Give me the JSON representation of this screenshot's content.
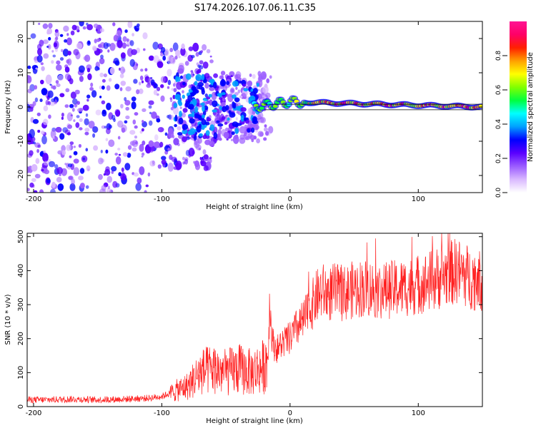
{
  "title": "S174.2026.107.06.11.C35",
  "chart_data": [
    {
      "type": "heatmap",
      "name": "spectrogram",
      "xlabel": "Height of straight line (km)",
      "ylabel": "Frequency (Hz)",
      "xlim": [
        -205,
        150
      ],
      "ylim": [
        -25,
        25
      ],
      "xticks": [
        -200,
        -100,
        0,
        100
      ],
      "xtick_labels": [
        "-200",
        "-100",
        "0",
        "100"
      ],
      "yticks": [
        -20,
        -10,
        0,
        10,
        20
      ],
      "ytick_labels": [
        "-20",
        "-10",
        "0",
        "10",
        "20"
      ],
      "colorbar": {
        "label": "Normalized spectral amplitude",
        "range": [
          0,
          1
        ],
        "ticks": [
          0.0,
          0.2,
          0.4,
          0.6,
          0.8
        ],
        "tick_labels": [
          "0.0",
          "0.2",
          "0.4",
          "0.6",
          "0.8"
        ],
        "colors": [
          "#ffffff",
          "#d9b8ff",
          "#9b5cff",
          "#5a00ff",
          "#0000ff",
          "#00a0ff",
          "#00ffff",
          "#00ff40",
          "#80ff00",
          "#ffff00",
          "#ffa000",
          "#ff2000",
          "#ff0066",
          "#ff1493"
        ]
      },
      "ridge": {
        "description_points": [
          {
            "x": -30,
            "y": 0
          },
          {
            "x": 0,
            "y": 1.5
          },
          {
            "x": 50,
            "y": 1
          },
          {
            "x": 100,
            "y": 0.5
          },
          {
            "x": 150,
            "y": 0
          }
        ]
      }
    },
    {
      "type": "line",
      "name": "snr",
      "xlabel": "Height of straight line (km)",
      "ylabel": "SNR (10 * v/v)",
      "xlim": [
        -205,
        150
      ],
      "ylim": [
        0,
        510
      ],
      "xticks": [
        -200,
        -100,
        0,
        100
      ],
      "xtick_labels": [
        "-200",
        "-100",
        "0",
        "100"
      ],
      "yticks": [
        0,
        100,
        200,
        300,
        400,
        500
      ],
      "ytick_labels": [
        "0",
        "100",
        "200",
        "300",
        "400",
        "500"
      ],
      "color": "#ff2020",
      "series": [
        {
          "name": "SNR",
          "x": [
            -205,
            -190,
            -170,
            -150,
            -130,
            -110,
            -100,
            -90,
            -80,
            -70,
            -60,
            -50,
            -40,
            -30,
            -25,
            -20,
            -17,
            -16,
            -15,
            -13,
            -10,
            -5,
            0,
            5,
            10,
            15,
            20,
            25,
            30,
            35,
            40,
            50,
            60,
            70,
            80,
            90,
            100,
            110,
            120,
            130,
            140,
            150
          ],
          "y": [
            20,
            20,
            22,
            20,
            22,
            25,
            30,
            45,
            60,
            100,
            110,
            100,
            110,
            100,
            110,
            120,
            150,
            300,
            250,
            180,
            170,
            190,
            200,
            230,
            250,
            280,
            320,
            340,
            330,
            340,
            330,
            345,
            350,
            340,
            345,
            350,
            360,
            370,
            385,
            400,
            380,
            370
          ]
        }
      ]
    }
  ]
}
